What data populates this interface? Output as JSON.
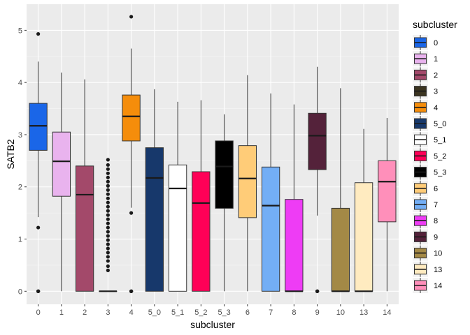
{
  "chart_data": {
    "type": "box",
    "xlabel": "subcluster",
    "ylabel": "SATB2",
    "ylim": [
      -0.25,
      5.5
    ],
    "y_ticks": [
      0,
      1,
      2,
      3,
      4,
      5
    ],
    "categories": [
      "0",
      "1",
      "2",
      "3",
      "4",
      "5_0",
      "5_1",
      "5_2",
      "5_3",
      "6",
      "7",
      "8",
      "9",
      "10",
      "13",
      "14"
    ],
    "legend": {
      "title": "subcluster",
      "position": "right"
    },
    "grid": true,
    "background": "#ebebeb",
    "boxes": [
      {
        "category": "0",
        "color": "#1a66e8",
        "min": 1.42,
        "q1": 2.7,
        "median": 3.17,
        "q3": 3.6,
        "max": 4.4,
        "outliers": [
          4.93,
          1.22,
          0,
          0,
          0,
          0
        ]
      },
      {
        "category": "1",
        "color": "#e9b3ee",
        "min": 0,
        "q1": 1.82,
        "median": 2.49,
        "q3": 3.05,
        "max": 4.19,
        "outliers": []
      },
      {
        "category": "2",
        "color": "#a3496a",
        "min": 0,
        "q1": 0,
        "median": 1.85,
        "q3": 2.4,
        "max": 4.06,
        "outliers": []
      },
      {
        "category": "3",
        "color": "#3b3420",
        "min": 0,
        "q1": 0,
        "median": 0,
        "q3": 0,
        "max": 0,
        "outliers": [
          0.4,
          0.48,
          0.58,
          0.66,
          0.74,
          0.82,
          0.9,
          0.98,
          1.06,
          1.14,
          1.22,
          1.3,
          1.38,
          1.46,
          1.54,
          1.62,
          1.7,
          1.78,
          1.86,
          1.94,
          2.02,
          2.1,
          2.18,
          2.26,
          2.34,
          2.42,
          2.52
        ]
      },
      {
        "category": "4",
        "color": "#f58d0b",
        "min": 1.6,
        "q1": 2.88,
        "median": 3.35,
        "q3": 3.76,
        "max": 4.65,
        "outliers": [
          5.26,
          1.5,
          0,
          0,
          0,
          0
        ]
      },
      {
        "category": "5_0",
        "color": "#17386b",
        "min": 0,
        "q1": 0,
        "median": 2.17,
        "q3": 2.75,
        "max": 3.87,
        "outliers": []
      },
      {
        "category": "5_1",
        "color": "#ffffff",
        "min": 0,
        "q1": 0,
        "median": 1.97,
        "q3": 2.42,
        "max": 3.63,
        "outliers": []
      },
      {
        "category": "5_2",
        "color": "#ff0057",
        "min": 0,
        "q1": 0,
        "median": 1.69,
        "q3": 2.29,
        "max": 3.66,
        "outliers": []
      },
      {
        "category": "5_3",
        "color": "#000000",
        "min": 0,
        "q1": 1.59,
        "median": 2.39,
        "q3": 2.88,
        "max": 3.39,
        "outliers": []
      },
      {
        "category": "6",
        "color": "#ffcc78",
        "min": 0,
        "q1": 1.41,
        "median": 2.16,
        "q3": 2.79,
        "max": 4.14,
        "outliers": []
      },
      {
        "category": "7",
        "color": "#73aef5",
        "min": 0,
        "q1": 0,
        "median": 1.64,
        "q3": 2.38,
        "max": 3.79,
        "outliers": []
      },
      {
        "category": "8",
        "color": "#ee3cf5",
        "min": 0,
        "q1": 0,
        "median": 0,
        "q3": 1.76,
        "max": 3.58,
        "outliers": []
      },
      {
        "category": "9",
        "color": "#54223a",
        "min": 1.45,
        "q1": 2.33,
        "median": 2.98,
        "q3": 3.41,
        "max": 4.3,
        "outliers": [
          0,
          0,
          0,
          0
        ]
      },
      {
        "category": "10",
        "color": "#a38946",
        "min": 0,
        "q1": 0,
        "median": 0,
        "q3": 1.59,
        "max": 3.89,
        "outliers": []
      },
      {
        "category": "13",
        "color": "#ffebc0",
        "min": 0,
        "q1": 0,
        "median": 0,
        "q3": 2.08,
        "max": 3.11,
        "outliers": []
      },
      {
        "category": "14",
        "color": "#ff8fba",
        "min": 0,
        "q1": 1.33,
        "median": 2.1,
        "q3": 2.5,
        "max": 3.32,
        "outliers": []
      }
    ]
  }
}
